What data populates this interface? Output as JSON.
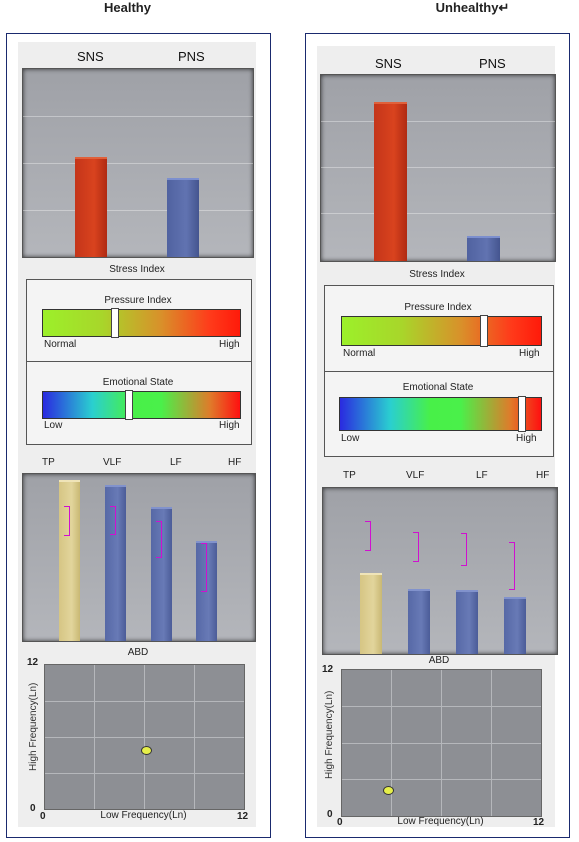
{
  "headings": {
    "left": "Healthy",
    "right": "Unhealthy↵"
  },
  "panels": [
    {
      "sns_label": "SNS",
      "pns_label": "PNS",
      "stress_index": "Stress Index",
      "pressure": {
        "title": "Pressure Index",
        "low": "Normal",
        "high": "High",
        "value_fraction": 0.36
      },
      "emotion": {
        "title": "Emotional State",
        "low": "Low",
        "high": "High",
        "value_fraction": 0.43
      },
      "hrv_labels": [
        "TP",
        "VLF",
        "LF",
        "HF"
      ],
      "abd_title": "ABD",
      "abd_xlabel": "Low Frequency(Ln)",
      "abd_ylabel": "High Frequency(Ln)",
      "abd_ticks": {
        "y_max": "12",
        "y_min": "0",
        "x_min": "0",
        "x_max": "12"
      }
    },
    {
      "sns_label": "SNS",
      "pns_label": "PNS",
      "stress_index": "Stress Index",
      "pressure": {
        "title": "Pressure Index",
        "low": "Normal",
        "high": "High",
        "value_fraction": 0.71
      },
      "emotion": {
        "title": "Emotional State",
        "low": "Low",
        "high": "High",
        "value_fraction": 0.9
      },
      "hrv_labels": [
        "TP",
        "VLF",
        "LF",
        "HF"
      ],
      "abd_title": "ABD",
      "abd_xlabel": "Low Frequency(Ln)",
      "abd_ylabel": "High Frequency(Ln)",
      "abd_ticks": {
        "y_max": "12",
        "y_min": "0",
        "x_min": "0",
        "x_max": "12"
      }
    }
  ],
  "chart_data": [
    {
      "type": "bar",
      "panel": "Healthy",
      "categories": [
        "SNS",
        "PNS"
      ],
      "values": [
        55,
        43
      ],
      "ylim": [
        0,
        100
      ]
    },
    {
      "type": "bar",
      "panel": "Healthy",
      "categories": [
        "TP",
        "VLF",
        "LF",
        "HF"
      ],
      "values": [
        100,
        97,
        83,
        62
      ],
      "ylim": [
        0,
        100
      ]
    },
    {
      "type": "scatter",
      "panel": "Healthy",
      "title": "ABD",
      "xlabel": "Low Frequency(Ln)",
      "ylabel": "High Frequency(Ln)",
      "points": [
        {
          "x": 6.1,
          "y": 4.9
        }
      ],
      "xlim": [
        0,
        12
      ],
      "ylim": [
        0,
        12
      ]
    },
    {
      "type": "bar",
      "panel": "Unhealthy",
      "categories": [
        "SNS",
        "PNS"
      ],
      "values": [
        89,
        13
      ],
      "ylim": [
        0,
        100
      ]
    },
    {
      "type": "bar",
      "panel": "Unhealthy",
      "categories": [
        "TP",
        "VLF",
        "LF",
        "HF"
      ],
      "values": [
        50,
        40,
        39,
        35
      ],
      "ylim": [
        0,
        100
      ]
    },
    {
      "type": "scatter",
      "panel": "Unhealthy",
      "title": "ABD",
      "xlabel": "Low Frequency(Ln)",
      "ylabel": "High Frequency(Ln)",
      "points": [
        {
          "x": 2.8,
          "y": 2.1
        }
      ],
      "xlim": [
        0,
        12
      ],
      "ylim": [
        0,
        12
      ]
    }
  ]
}
